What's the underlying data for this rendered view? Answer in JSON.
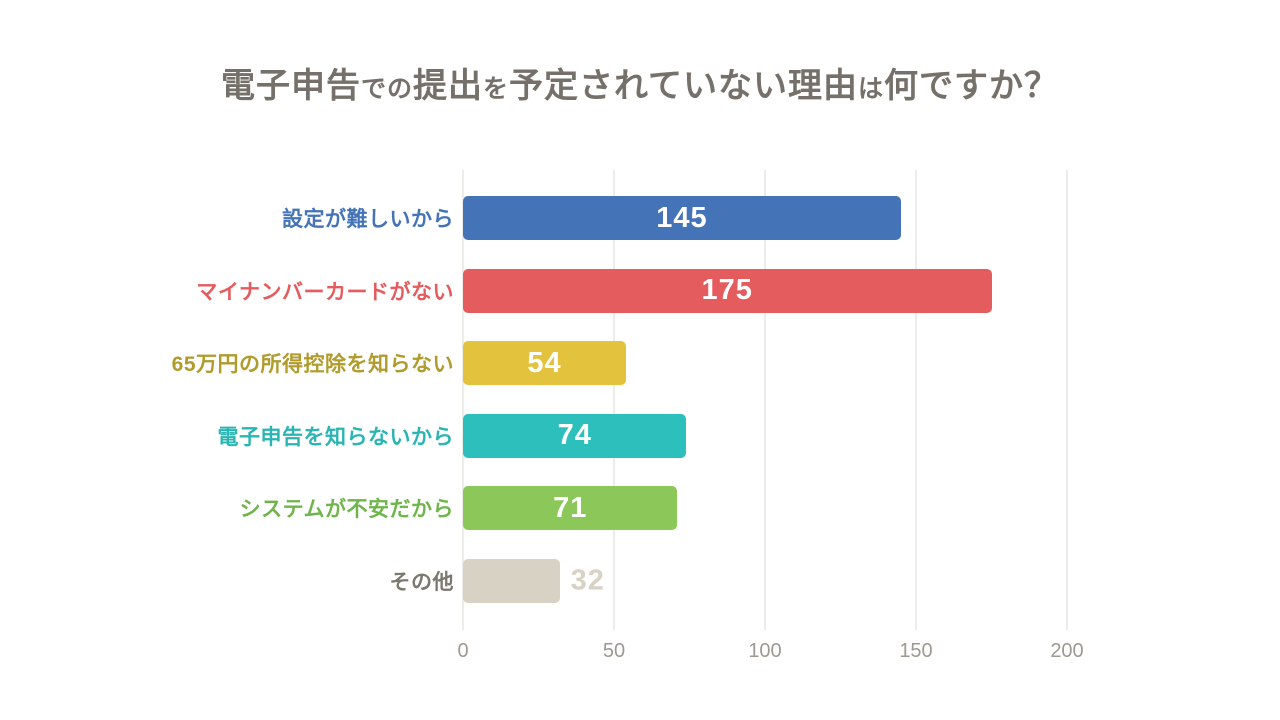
{
  "chart_data": {
    "type": "bar",
    "orientation": "horizontal",
    "title": "電子申告での提出を予定されていない理由は何ですか？",
    "title_segments": [
      {
        "text": "電子申告",
        "emphasis": true
      },
      {
        "text": "での",
        "emphasis": false
      },
      {
        "text": "提出",
        "emphasis": true
      },
      {
        "text": "を",
        "emphasis": false
      },
      {
        "text": "予定されていない理由",
        "emphasis": true
      },
      {
        "text": "は",
        "emphasis": false
      },
      {
        "text": "何ですか？",
        "emphasis": true
      }
    ],
    "categories": [
      "設定が難しいから",
      "マイナンバーカードがない",
      "65万円の所得控除を知らない",
      "電子申告を知らないから",
      "システムが不安だから",
      "その他"
    ],
    "values": [
      145,
      175,
      54,
      74,
      71,
      32
    ],
    "bars": [
      {
        "label": "設定が難しいから",
        "value": 145,
        "bar_color": "#4573b7",
        "label_color": "#4573b7",
        "value_position": "inside"
      },
      {
        "label": "マイナンバーカードがない",
        "value": 175,
        "bar_color": "#e45c5e",
        "label_color": "#e45c5e",
        "value_position": "inside"
      },
      {
        "label": "65万円の所得控除を知らない",
        "value": 54,
        "bar_color": "#e3c33d",
        "label_color": "#b09b2b",
        "value_position": "inside"
      },
      {
        "label": "電子申告を知らないから",
        "value": 74,
        "bar_color": "#2cbfbc",
        "label_color": "#2ab5b2",
        "value_position": "inside"
      },
      {
        "label": "システムが不安だから",
        "value": 71,
        "bar_color": "#8cc859",
        "label_color": "#6fb54b",
        "value_position": "inside"
      },
      {
        "label": "その他",
        "value": 32,
        "bar_color": "#d8d2c5",
        "label_color": "#7b7870",
        "value_position": "outside",
        "value_color": "#d8d2c5"
      }
    ],
    "xlabel": "",
    "ylabel": "",
    "xlim": [
      0,
      200
    ],
    "x_ticks": [
      "0",
      "50",
      "100",
      "150",
      "200"
    ],
    "grid": true,
    "legend": false
  },
  "style": {
    "background": "#ffffff",
    "title_color": "#75716a",
    "grid_color": "#eeece8",
    "tick_color": "#9d9992",
    "value_inside_color": "#ffffff"
  }
}
